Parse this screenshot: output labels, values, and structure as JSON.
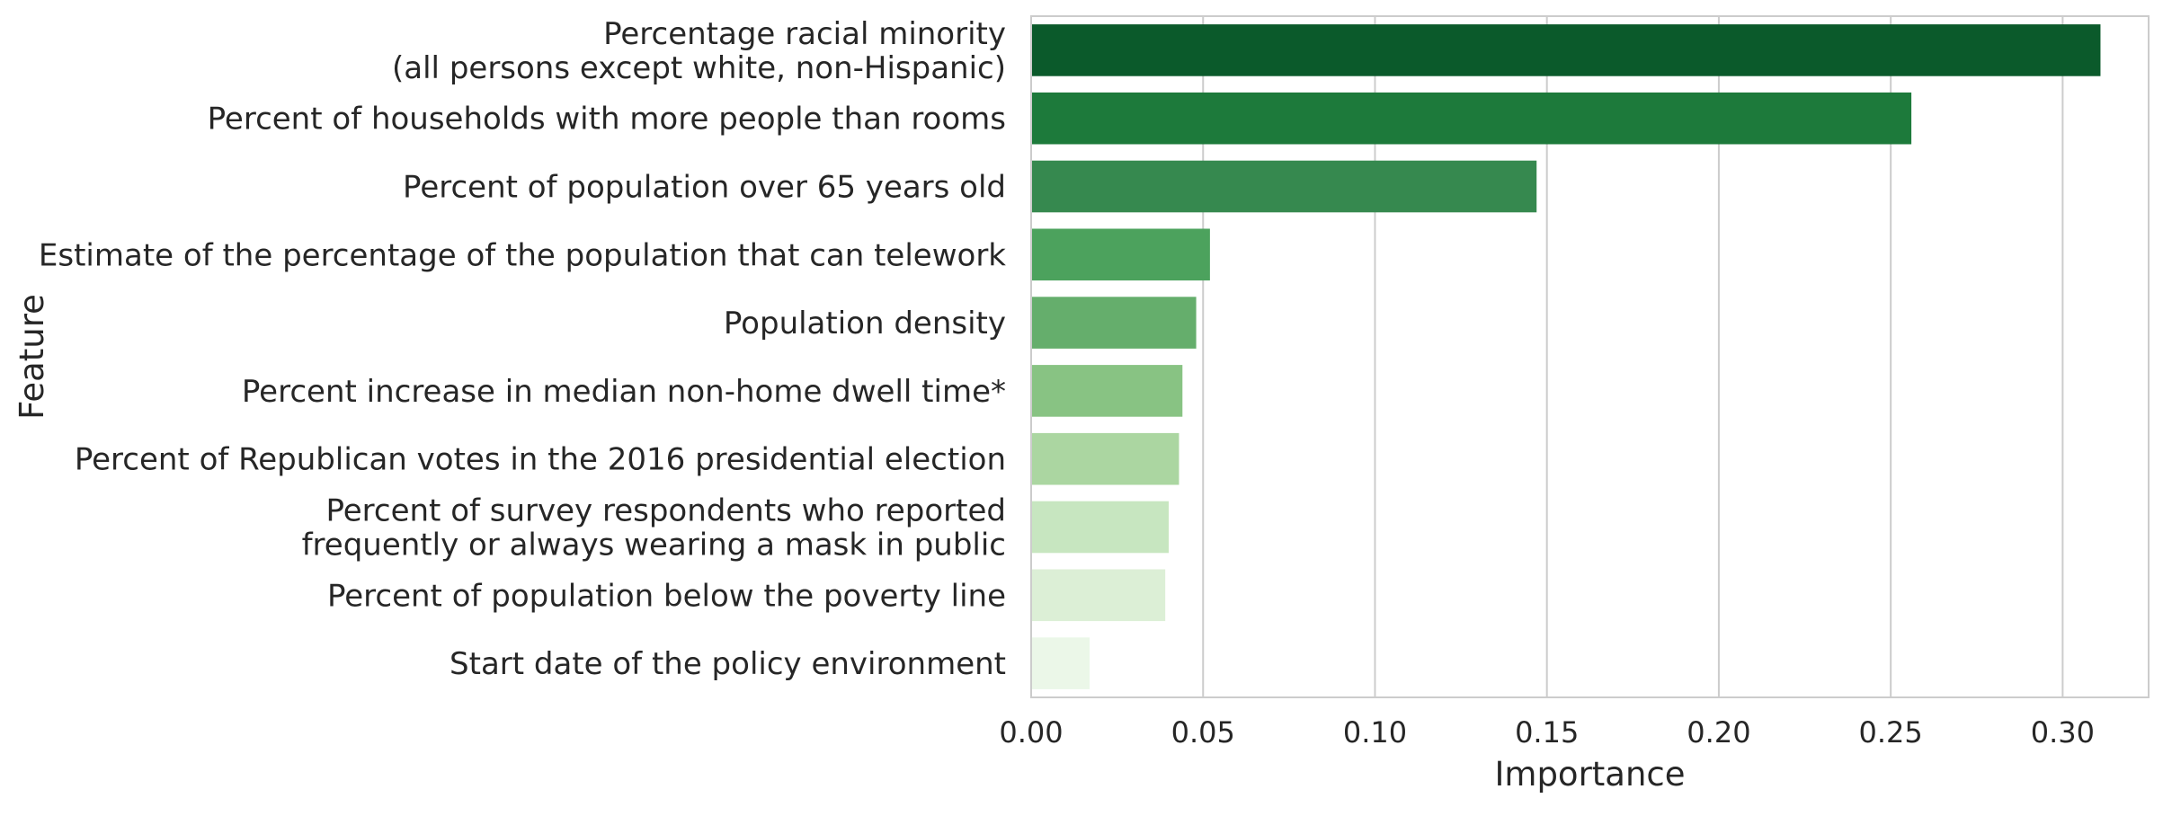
{
  "chart_data": {
    "type": "bar",
    "orientation": "horizontal",
    "title": "",
    "xlabel": "Importance",
    "ylabel": "Feature",
    "xlim": [
      0,
      0.325
    ],
    "xticks": [
      "0.00",
      "0.05",
      "0.10",
      "0.15",
      "0.20",
      "0.25",
      "0.30"
    ],
    "xtick_values": [
      0,
      0.05,
      0.1,
      0.15,
      0.2,
      0.25,
      0.3
    ],
    "grid": "vertical",
    "categories": [
      [
        "Percentage racial minority",
        "(all persons except white, non-Hispanic)"
      ],
      [
        "Percent of households with more people than rooms"
      ],
      [
        "Percent of population over 65 years old"
      ],
      [
        "Estimate of the percentage of the population that can telework"
      ],
      [
        "Population density"
      ],
      [
        "Percent increase in median non-home dwell time*"
      ],
      [
        "Percent of Republican votes in the 2016 presidential election"
      ],
      [
        "Percent of survey respondents who reported",
        "frequently or always wearing a mask in public"
      ],
      [
        "Percent of population below the poverty line"
      ],
      [
        "Start date of the policy environment"
      ]
    ],
    "values": [
      0.311,
      0.256,
      0.147,
      0.052,
      0.048,
      0.044,
      0.043,
      0.04,
      0.039,
      0.017
    ],
    "colors": [
      "#0b5a2b",
      "#1d7a3b",
      "#36894f",
      "#4ca25d",
      "#65ae6c",
      "#88c383",
      "#abd6a1",
      "#c7e6c0",
      "#dcefd6",
      "#ebf7e8"
    ]
  }
}
